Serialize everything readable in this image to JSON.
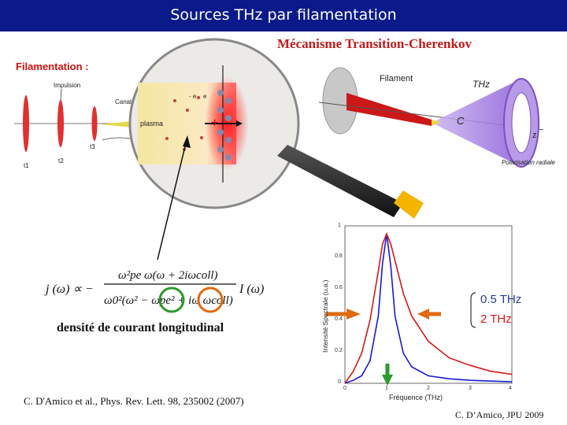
{
  "header": {
    "title": "Sources THz par filamentation",
    "subtitle": "Mécanisme Transition-Cherenkov"
  },
  "filamentation": {
    "label": "Filamentation :",
    "impulsion": "Impulsion",
    "canal": "Canal",
    "plasma": "plasma",
    "times": [
      "t1",
      "t2",
      "t3"
    ],
    "charges": [
      "- e",
      "e",
      "+"
    ]
  },
  "cone": {
    "filament": "Filament",
    "thz": "THz",
    "c": "C",
    "z": "z",
    "polarisation": "Polarisation radiale"
  },
  "formula": {
    "caption": "densité  de courant longitudinal"
  },
  "spectrum": {
    "ylabel": "Intensité Spectrale (u.a.)",
    "xlabel": "Fréquence (THz)",
    "legend": [
      "0.5 THz",
      "2 THz"
    ],
    "colors": {
      "blue": "#1a1acc",
      "red": "#d81818"
    }
  },
  "chart_data": {
    "type": "line",
    "xlabel": "Fréquence (THz)",
    "ylabel": "Intensité Spectrale (u.a.)",
    "xlim": [
      0,
      4
    ],
    "ylim": [
      0,
      1
    ],
    "xticks": [
      "0",
      "1",
      "2",
      "3",
      "4"
    ],
    "yticks": [
      "0",
      "0.2",
      "0.4",
      "0.6",
      "0.8",
      "1"
    ],
    "series": [
      {
        "name": "0.5 THz",
        "color": "#1a1acc",
        "x": [
          0,
          0.2,
          0.4,
          0.6,
          0.8,
          0.9,
          1.0,
          1.1,
          1.2,
          1.4,
          1.6,
          2.0,
          2.5,
          3.0,
          3.5,
          4.0
        ],
        "y": [
          0,
          0.02,
          0.05,
          0.15,
          0.45,
          0.8,
          1.0,
          0.78,
          0.45,
          0.2,
          0.11,
          0.05,
          0.03,
          0.02,
          0.015,
          0.01
        ]
      },
      {
        "name": "2 THz",
        "color": "#d81818",
        "x": [
          0,
          0.2,
          0.4,
          0.6,
          0.8,
          0.9,
          1.0,
          1.1,
          1.2,
          1.4,
          1.6,
          2.0,
          2.5,
          3.0,
          3.5,
          4.0
        ],
        "y": [
          0,
          0.08,
          0.2,
          0.42,
          0.75,
          0.93,
          1.0,
          0.93,
          0.82,
          0.6,
          0.45,
          0.28,
          0.17,
          0.12,
          0.08,
          0.06
        ]
      }
    ]
  },
  "footer": {
    "citation": "C. D'Amico et al., Phys. Rev. Lett. 98, 235002 (2007)",
    "credit": "C. D’Amico, JPU 2009"
  }
}
